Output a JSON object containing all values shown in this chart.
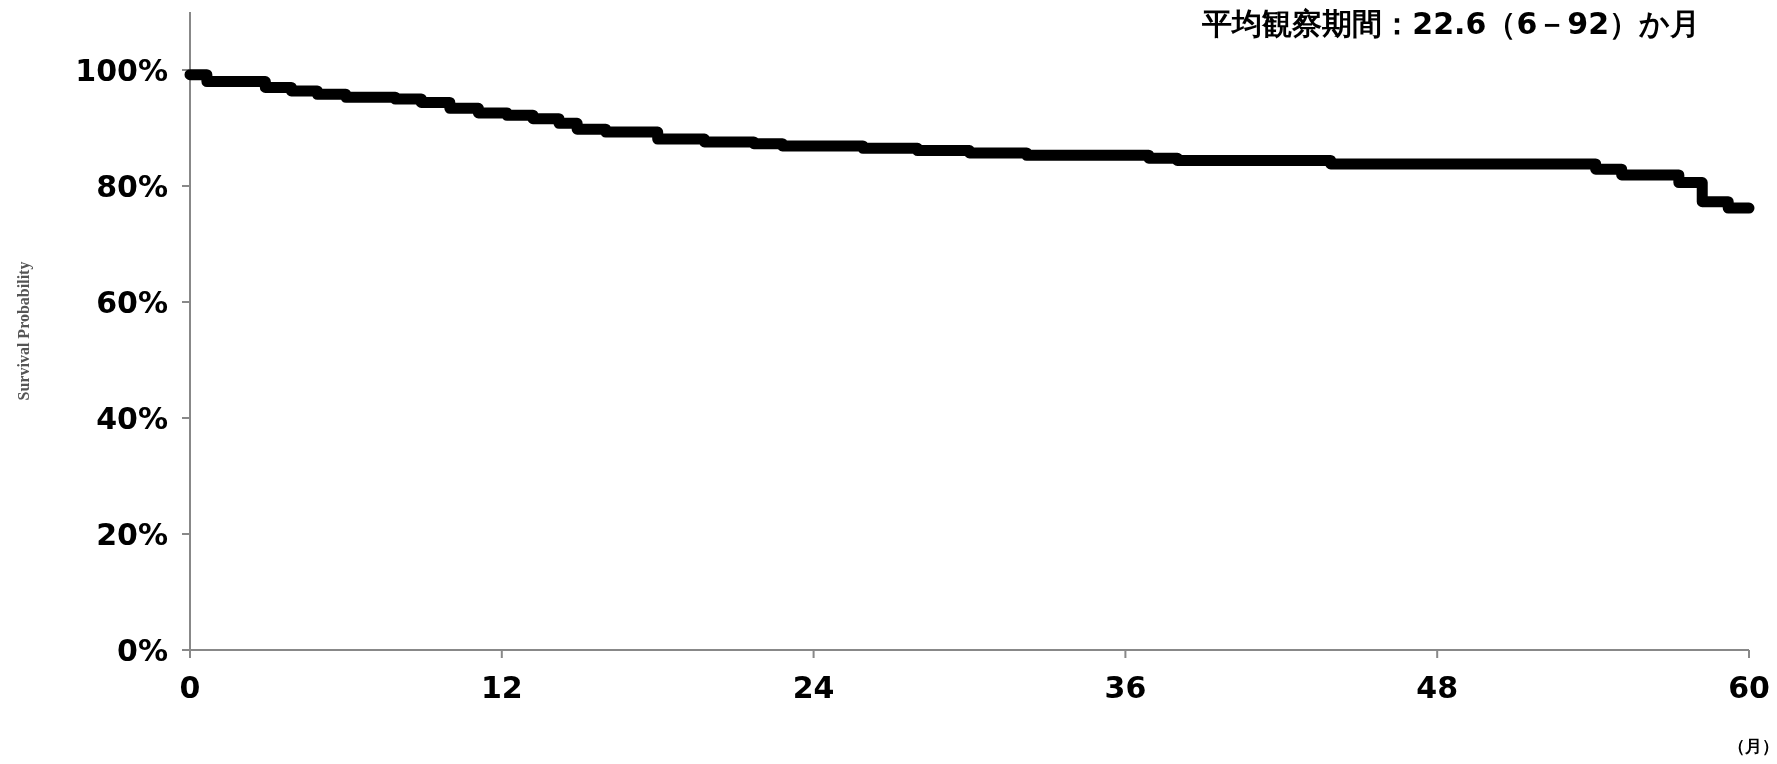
{
  "chart_data": {
    "type": "step",
    "title": "平均観察期間：22.6（6－92）か月",
    "ylabel": "Survival Probability",
    "annotations": [
      "（月）"
    ],
    "x": [
      0,
      0.65,
      2.9,
      3.9,
      4.9,
      6.0,
      7.9,
      8.9,
      10.0,
      11.1,
      12.2,
      13.2,
      14.2,
      14.9,
      16.0,
      18.0,
      19.8,
      21.7,
      22.8,
      25.9,
      28.0,
      30.0,
      32.2,
      36.9,
      38.0,
      43.9,
      54.1,
      55.1,
      57.3,
      58.2,
      59.2,
      60
    ],
    "values": [
      99.2,
      98.0,
      97.0,
      96.4,
      95.8,
      95.3,
      95.0,
      94.4,
      93.4,
      92.6,
      92.2,
      91.6,
      90.8,
      89.8,
      89.3,
      88.1,
      87.6,
      87.3,
      86.9,
      86.5,
      86.1,
      85.7,
      85.3,
      84.8,
      84.4,
      83.8,
      82.9,
      81.9,
      80.6,
      77.3,
      76.2,
      76.2
    ],
    "color": "#000000",
    "line_style": "solid",
    "marker": "none",
    "grid": false,
    "xlim": [
      0,
      60
    ],
    "xticks": [
      0,
      12,
      24,
      36,
      48,
      60
    ],
    "ylim": [
      0,
      110
    ],
    "yticks": [
      {
        "value": 0,
        "label": "0%"
      },
      {
        "value": 20,
        "label": "20%"
      },
      {
        "value": 40,
        "label": "40%"
      },
      {
        "value": 60,
        "label": "60%"
      },
      {
        "value": 80,
        "label": "80%"
      },
      {
        "value": 100,
        "label": "100%"
      }
    ]
  }
}
